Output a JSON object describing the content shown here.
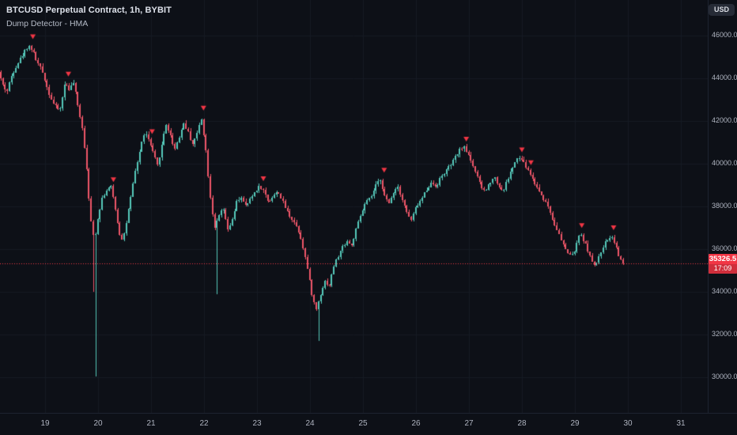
{
  "header": {
    "symbol_title": "BTCUSD Perpetual Contract, 1h, BYBIT",
    "indicator": "Dump Detector - HMA"
  },
  "toolbar": {
    "currency_label": "USD"
  },
  "price_scale": {
    "current_price": "35326.5",
    "countdown": "17:09"
  },
  "time_scale": {
    "labels": [
      "19",
      "20",
      "21",
      "22",
      "23",
      "24",
      "25",
      "26",
      "27",
      "28",
      "29",
      "30",
      "31"
    ]
  },
  "colors": {
    "background": "#0d1017",
    "grid": "#151a23",
    "up": "#55c9ba",
    "down": "#ef5669",
    "accent_red": "#f23645",
    "axis_text": "#aeb3bf"
  },
  "chart_data": {
    "type": "candlestick",
    "title": "BTCUSD Perpetual Contract, 1h, BYBIT",
    "symbol": "BTCUSD",
    "exchange": "BYBIT",
    "interval": "1h",
    "indicator": "Dump Detector - HMA",
    "current_price": 35326.5,
    "bar_countdown": "17:09",
    "y_axis": {
      "ticks": [
        30000,
        32000,
        34000,
        36000,
        38000,
        40000,
        42000,
        44000,
        46000
      ],
      "tick_suffix": ".0",
      "min_visible": 28400,
      "max_visible": 47600
    },
    "x_axis": {
      "ticks": [
        19,
        20,
        21,
        22,
        23,
        24,
        25,
        26,
        27,
        28,
        29,
        30,
        31
      ],
      "start_day": 18.16,
      "end_day": 29.93
    },
    "grid": true,
    "legend_position": "top-left",
    "seed": 42,
    "price_path": [
      [
        18.16,
        44300
      ],
      [
        18.24,
        43700
      ],
      [
        18.32,
        43350
      ],
      [
        18.42,
        44200
      ],
      [
        18.52,
        44700
      ],
      [
        18.62,
        45100
      ],
      [
        18.72,
        45550
      ],
      [
        18.8,
        45350
      ],
      [
        18.88,
        44800
      ],
      [
        19.0,
        44250
      ],
      [
        19.1,
        43400
      ],
      [
        19.22,
        42700
      ],
      [
        19.32,
        42500
      ],
      [
        19.42,
        43800
      ],
      [
        19.5,
        43500
      ],
      [
        19.58,
        43800
      ],
      [
        19.66,
        42700
      ],
      [
        19.74,
        41800
      ],
      [
        19.82,
        40000
      ],
      [
        19.9,
        37400
      ],
      [
        19.97,
        36400
      ],
      [
        20.04,
        37500
      ],
      [
        20.12,
        38400
      ],
      [
        20.21,
        38800
      ],
      [
        20.29,
        38900
      ],
      [
        20.36,
        38000
      ],
      [
        20.44,
        36800
      ],
      [
        20.51,
        36400
      ],
      [
        20.58,
        37300
      ],
      [
        20.66,
        38400
      ],
      [
        20.74,
        39600
      ],
      [
        20.83,
        40600
      ],
      [
        20.92,
        41500
      ],
      [
        21.0,
        41100
      ],
      [
        21.08,
        40500
      ],
      [
        21.16,
        39900
      ],
      [
        21.24,
        40800
      ],
      [
        21.32,
        41900
      ],
      [
        21.41,
        41300
      ],
      [
        21.49,
        40700
      ],
      [
        21.58,
        41300
      ],
      [
        21.66,
        41900
      ],
      [
        21.74,
        41500
      ],
      [
        21.82,
        40900
      ],
      [
        21.91,
        41400
      ],
      [
        21.99,
        42200
      ],
      [
        22.07,
        40800
      ],
      [
        22.15,
        38600
      ],
      [
        22.24,
        37000
      ],
      [
        22.32,
        37500
      ],
      [
        22.4,
        37950
      ],
      [
        22.49,
        36900
      ],
      [
        22.57,
        37300
      ],
      [
        22.66,
        38200
      ],
      [
        22.74,
        38450
      ],
      [
        22.82,
        38000
      ],
      [
        22.91,
        38300
      ],
      [
        23.0,
        38700
      ],
      [
        23.09,
        38950
      ],
      [
        23.17,
        38700
      ],
      [
        23.26,
        38200
      ],
      [
        23.36,
        38550
      ],
      [
        23.45,
        38650
      ],
      [
        23.55,
        38100
      ],
      [
        23.65,
        37600
      ],
      [
        23.75,
        37250
      ],
      [
        23.85,
        36700
      ],
      [
        23.94,
        35800
      ],
      [
        24.02,
        34700
      ],
      [
        24.1,
        33600
      ],
      [
        24.16,
        33200
      ],
      [
        24.24,
        33900
      ],
      [
        24.32,
        34500
      ],
      [
        24.41,
        34300
      ],
      [
        24.49,
        35200
      ],
      [
        24.57,
        35650
      ],
      [
        24.66,
        36100
      ],
      [
        24.74,
        36400
      ],
      [
        24.83,
        36150
      ],
      [
        24.92,
        37000
      ],
      [
        25.0,
        37600
      ],
      [
        25.1,
        38200
      ],
      [
        25.19,
        38400
      ],
      [
        25.28,
        38950
      ],
      [
        25.37,
        39300
      ],
      [
        25.45,
        38500
      ],
      [
        25.53,
        38100
      ],
      [
        25.62,
        38700
      ],
      [
        25.7,
        38950
      ],
      [
        25.79,
        38300
      ],
      [
        25.87,
        37700
      ],
      [
        25.95,
        37350
      ],
      [
        26.04,
        37950
      ],
      [
        26.14,
        38300
      ],
      [
        26.24,
        38800
      ],
      [
        26.33,
        39100
      ],
      [
        26.43,
        38950
      ],
      [
        26.52,
        39400
      ],
      [
        26.62,
        39700
      ],
      [
        26.72,
        40000
      ],
      [
        26.82,
        40450
      ],
      [
        26.92,
        40800
      ],
      [
        27.0,
        40600
      ],
      [
        27.09,
        40100
      ],
      [
        27.18,
        39500
      ],
      [
        27.27,
        38900
      ],
      [
        27.35,
        38700
      ],
      [
        27.44,
        39150
      ],
      [
        27.52,
        39400
      ],
      [
        27.6,
        39000
      ],
      [
        27.68,
        38700
      ],
      [
        27.77,
        39250
      ],
      [
        27.85,
        39750
      ],
      [
        27.93,
        40150
      ],
      [
        28.01,
        40300
      ],
      [
        28.09,
        39950
      ],
      [
        28.17,
        39650
      ],
      [
        28.26,
        39200
      ],
      [
        28.35,
        38800
      ],
      [
        28.44,
        38400
      ],
      [
        28.53,
        38050
      ],
      [
        28.62,
        37400
      ],
      [
        28.71,
        36900
      ],
      [
        28.8,
        36300
      ],
      [
        28.89,
        35900
      ],
      [
        28.98,
        35650
      ],
      [
        29.06,
        36100
      ],
      [
        29.14,
        36750
      ],
      [
        29.22,
        36350
      ],
      [
        29.31,
        35800
      ],
      [
        29.4,
        35150
      ],
      [
        29.48,
        35500
      ],
      [
        29.56,
        36050
      ],
      [
        29.64,
        36400
      ],
      [
        29.72,
        36650
      ],
      [
        29.8,
        36300
      ],
      [
        29.87,
        35700
      ],
      [
        29.93,
        35330
      ]
    ],
    "wick_overrides": [
      [
        19.9,
        34000
      ],
      [
        19.97,
        30050
      ],
      [
        22.26,
        33900
      ],
      [
        24.17,
        31700
      ]
    ],
    "markers": [
      [
        18.77,
        45800
      ],
      [
        19.44,
        44050
      ],
      [
        20.29,
        39100
      ],
      [
        21.02,
        41350
      ],
      [
        21.99,
        42450
      ],
      [
        23.12,
        39150
      ],
      [
        25.4,
        39550
      ],
      [
        26.95,
        41000
      ],
      [
        28.0,
        40500
      ],
      [
        28.17,
        39900
      ],
      [
        29.13,
        36950
      ],
      [
        29.73,
        36850
      ]
    ],
    "marker_shape": "triangle-down",
    "marker_color": "#f23645"
  }
}
